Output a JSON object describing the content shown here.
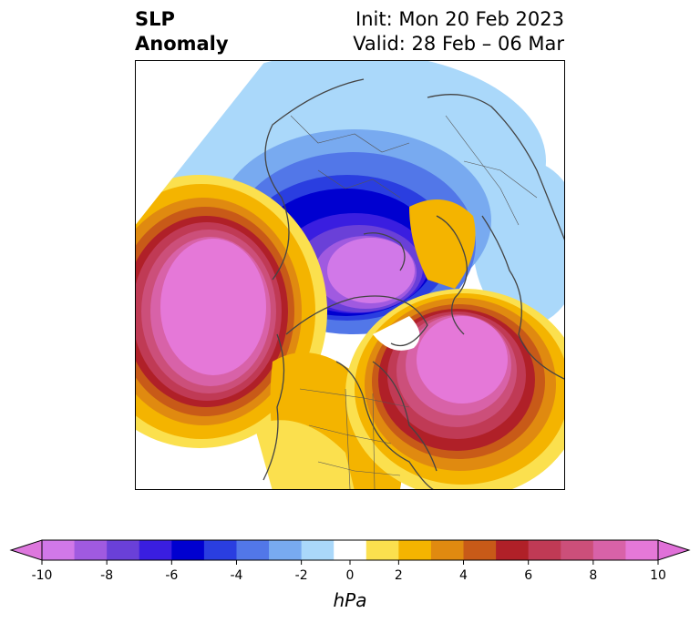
{
  "title": {
    "left_line1": "SLP",
    "left_line2": "Anomaly",
    "right_line1": "Init: Mon 20 Feb 2023",
    "right_line2": "Valid: 28 Feb – 06 Mar"
  },
  "map": {
    "projection": "north-polar-stereographic",
    "features": [
      {
        "name": "arctic-low",
        "sign": "negative",
        "peak_hpa": -10
      },
      {
        "name": "north-pacific-high",
        "sign": "positive",
        "peak_hpa": 10
      },
      {
        "name": "north-atlantic-high",
        "sign": "positive",
        "peak_hpa": 10
      },
      {
        "name": "eurasia-low",
        "sign": "negative",
        "peak_hpa": -2
      }
    ]
  },
  "colorbar": {
    "units": "hPa",
    "extend": "both",
    "tick_labels": [
      "-10",
      "-8",
      "-6",
      "-4",
      "-2",
      "0",
      "2",
      "4",
      "6",
      "8",
      "10"
    ],
    "bounds": [
      -10,
      -9,
      -8,
      -7,
      -6,
      -5,
      -4,
      -3,
      -2,
      -1,
      1,
      2,
      3,
      4,
      5,
      6,
      7,
      8,
      9,
      10
    ],
    "colors": {
      "under": "#dd77dd",
      "over": "#e070d8",
      "bins": [
        "#d178e8",
        "#a05ae0",
        "#6a40d8",
        "#3a1ee0",
        "#0000d0",
        "#2a3ee0",
        "#5277e8",
        "#78aaf0",
        "#aad8fa",
        "#ffffff",
        "#fbe04e",
        "#f4b400",
        "#e08a10",
        "#c85a18",
        "#b02028",
        "#c03a55",
        "#cc4f7a",
        "#d862a8",
        "#e578d8"
      ]
    }
  }
}
